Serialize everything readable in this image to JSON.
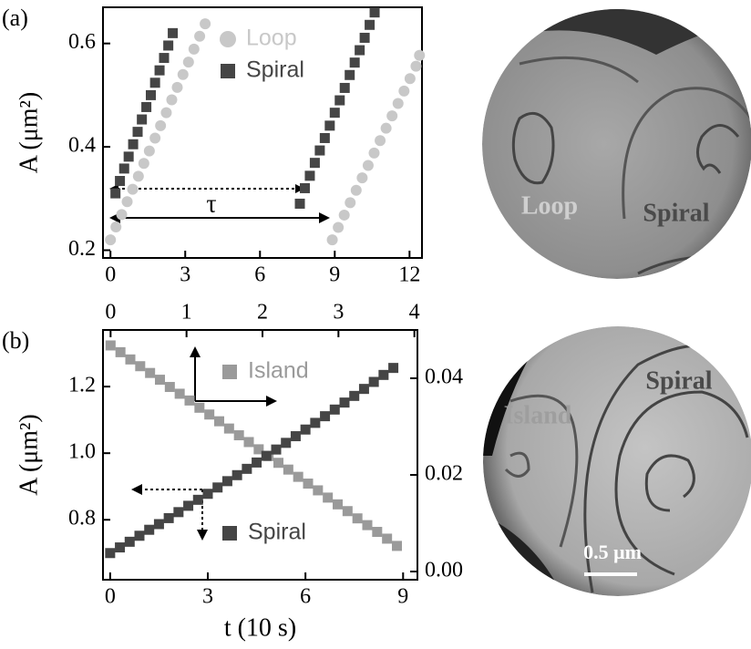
{
  "chart_data": [
    {
      "type": "scatter",
      "label": "(a)",
      "y_label": "A (μm²)",
      "annotation": "τ",
      "xlim": [
        -0.3,
        12.5
      ],
      "xticks": [
        0,
        3,
        6,
        9,
        12
      ],
      "ylim": [
        0.185,
        0.67
      ],
      "yticks": [
        0.2,
        0.4,
        0.6
      ],
      "series": [
        {
          "name": "Loop",
          "color": "#c8c8c8",
          "marker": "circle",
          "x": [
            0.0,
            0.22,
            0.45,
            0.67,
            0.89,
            1.12,
            1.34,
            1.56,
            1.79,
            2.01,
            2.24,
            2.46,
            2.68,
            2.91,
            3.13,
            3.35,
            3.58,
            3.8,
            8.9,
            9.14,
            9.38,
            9.62,
            9.86,
            10.1,
            10.34,
            10.58,
            10.82,
            11.06,
            11.3,
            11.54,
            11.78,
            12.02,
            12.26,
            12.4
          ],
          "values": [
            0.22,
            0.245,
            0.269,
            0.294,
            0.318,
            0.343,
            0.368,
            0.392,
            0.417,
            0.441,
            0.466,
            0.491,
            0.515,
            0.54,
            0.564,
            0.589,
            0.614,
            0.638,
            0.22,
            0.244,
            0.268,
            0.292,
            0.316,
            0.34,
            0.364,
            0.388,
            0.412,
            0.436,
            0.46,
            0.484,
            0.508,
            0.532,
            0.556,
            0.577
          ]
        },
        {
          "name": "Spiral",
          "color": "#454545",
          "marker": "square",
          "x": [
            0.2,
            0.38,
            0.55,
            0.73,
            0.91,
            1.09,
            1.26,
            1.44,
            1.62,
            1.79,
            1.97,
            2.15,
            2.32,
            2.5,
            7.6,
            7.8,
            8.0,
            8.2,
            8.4,
            8.6,
            8.8,
            9.0,
            9.2,
            9.4,
            9.6,
            9.8,
            10.0,
            10.2,
            10.4,
            10.6
          ],
          "values": [
            0.31,
            0.334,
            0.358,
            0.381,
            0.405,
            0.429,
            0.453,
            0.477,
            0.5,
            0.524,
            0.548,
            0.572,
            0.596,
            0.62,
            0.29,
            0.32,
            0.344,
            0.369,
            0.393,
            0.417,
            0.441,
            0.466,
            0.49,
            0.514,
            0.539,
            0.563,
            0.587,
            0.611,
            0.636,
            0.66
          ]
        }
      ]
    },
    {
      "type": "scatter",
      "label": "(b)",
      "x_label": "t (10 s)",
      "y_label": "A (μm²)",
      "xlim": [
        -0.22,
        9.44
      ],
      "xticks": [
        0,
        3,
        6,
        9
      ],
      "x2lim": [
        -0.1,
        4.04
      ],
      "x2ticks": [
        0,
        1,
        2,
        3,
        4
      ],
      "ylim": [
        0.62,
        1.37
      ],
      "yticks": [
        0.8,
        {
          "value": 1,
          "label": "1.0"
        },
        1.2
      ],
      "y2lim": [
        -0.0017,
        0.05
      ],
      "y2ticks": [
        {
          "value": 0,
          "label": "0.00"
        },
        0.02,
        0.04
      ],
      "series": [
        {
          "name": "Island",
          "color": "#9a9a9a",
          "marker": "square",
          "axis": "y2",
          "xaxis": "x2",
          "x": [
            0,
            0.13,
            0.26,
            0.39,
            0.52,
            0.65,
            0.78,
            0.91,
            1.04,
            1.17,
            1.3,
            1.43,
            1.56,
            1.69,
            1.82,
            1.95,
            2.08,
            2.21,
            2.34,
            2.47,
            2.6,
            2.73,
            2.86,
            2.99,
            3.12,
            3.25,
            3.38,
            3.51,
            3.64,
            3.77
          ],
          "values": [
            0.0468,
            0.0454,
            0.0439,
            0.0425,
            0.0411,
            0.0397,
            0.0382,
            0.0368,
            0.0354,
            0.0339,
            0.0325,
            0.0311,
            0.0296,
            0.0282,
            0.0268,
            0.0253,
            0.0239,
            0.0225,
            0.0211,
            0.0196,
            0.0182,
            0.0168,
            0.0153,
            0.0139,
            0.0125,
            0.011,
            0.0096,
            0.0082,
            0.0068,
            0.0053
          ]
        },
        {
          "name": "Spiral",
          "color": "#454545",
          "marker": "square",
          "x": [
            0,
            0.3,
            0.6,
            0.9,
            1.2,
            1.5,
            1.8,
            2.1,
            2.4,
            2.7,
            3.0,
            3.3,
            3.6,
            3.9,
            4.2,
            4.5,
            4.8,
            5.1,
            5.4,
            5.7,
            6.0,
            6.3,
            6.6,
            6.9,
            7.2,
            7.5,
            7.8,
            8.1,
            8.4,
            8.7
          ],
          "values": [
            0.7,
            0.717,
            0.734,
            0.752,
            0.77,
            0.787,
            0.805,
            0.823,
            0.842,
            0.86,
            0.878,
            0.897,
            0.916,
            0.934,
            0.953,
            0.972,
            0.992,
            1.011,
            1.031,
            1.051,
            1.071,
            1.091,
            1.111,
            1.131,
            1.152,
            1.172,
            1.193,
            1.214,
            1.235,
            1.256
          ]
        }
      ]
    }
  ],
  "images": [
    {
      "labels": [
        "Loop",
        "Spiral"
      ]
    },
    {
      "labels": [
        "Island",
        "Spiral"
      ],
      "scale": "0.5 μm"
    }
  ]
}
